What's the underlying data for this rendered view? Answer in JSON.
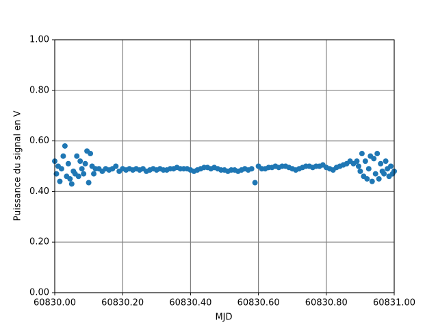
{
  "chart_data": {
    "type": "scatter",
    "x_label": "MJD",
    "y_label": "Puissance du signal en V",
    "xlim": [
      60830.0,
      60831.0
    ],
    "ylim": [
      0,
      1
    ],
    "xticks": [
      {
        "value": 60830.0,
        "label": "60830.00"
      },
      {
        "value": 60830.2,
        "label": "60830.20"
      },
      {
        "value": 60830.4,
        "label": "60830.40"
      },
      {
        "value": 60830.6,
        "label": "60830.60"
      },
      {
        "value": 60830.8,
        "label": "60830.80"
      },
      {
        "value": 60831.0,
        "label": "60831.00"
      }
    ],
    "yticks": [
      {
        "value": 0,
        "label": "0.00"
      },
      {
        "value": 0.2,
        "label": "0.20"
      },
      {
        "value": 0.4,
        "label": "0.40"
      },
      {
        "value": 0.6,
        "label": "0.60"
      },
      {
        "value": 0.8,
        "label": "0.80"
      },
      {
        "value": 1,
        "label": "1.00"
      }
    ],
    "grid": true,
    "series": [
      {
        "color": "#1f77b4",
        "x": [
          60830.0,
          60830.005,
          60830.01,
          60830.015,
          60830.02,
          60830.025,
          60830.03,
          60830.035,
          60830.04,
          60830.045,
          60830.05,
          60830.055,
          60830.06,
          60830.065,
          60830.07,
          60830.075,
          60830.08,
          60830.085,
          60830.09,
          60830.095,
          60830.1,
          60830.105,
          60830.11,
          60830.115,
          60830.12,
          60830.13,
          60830.14,
          60830.15,
          60830.16,
          60830.17,
          60830.18,
          60830.19,
          60830.2,
          60830.21,
          60830.22,
          60830.23,
          60830.24,
          60830.25,
          60830.26,
          60830.27,
          60830.28,
          60830.29,
          60830.3,
          60830.31,
          60830.32,
          60830.33,
          60830.34,
          60830.35,
          60830.36,
          60830.37,
          60830.38,
          60830.39,
          60830.4,
          60830.41,
          60830.42,
          60830.43,
          60830.44,
          60830.45,
          60830.46,
          60830.47,
          60830.48,
          60830.49,
          60830.5,
          60830.51,
          60830.52,
          60830.53,
          60830.54,
          60830.55,
          60830.56,
          60830.57,
          60830.58,
          60830.59,
          60830.6,
          60830.61,
          60830.62,
          60830.63,
          60830.64,
          60830.65,
          60830.66,
          60830.67,
          60830.68,
          60830.69,
          60830.7,
          60830.71,
          60830.72,
          60830.73,
          60830.74,
          60830.75,
          60830.76,
          60830.77,
          60830.78,
          60830.79,
          60830.8,
          60830.81,
          60830.82,
          60830.83,
          60830.84,
          60830.85,
          60830.86,
          60830.87,
          60830.88,
          60830.89,
          60830.895,
          60830.9,
          60830.905,
          60830.91,
          60830.915,
          60830.92,
          60830.925,
          60830.93,
          60830.935,
          60830.94,
          60830.945,
          60830.95,
          60830.955,
          60830.96,
          60830.965,
          60830.97,
          60830.975,
          60830.98,
          60830.985,
          60830.99,
          60830.995,
          60831.0
        ],
        "values": [
          0.52,
          0.47,
          0.5,
          0.44,
          0.49,
          0.54,
          0.58,
          0.46,
          0.51,
          0.45,
          0.43,
          0.48,
          0.47,
          0.54,
          0.46,
          0.52,
          0.49,
          0.47,
          0.51,
          0.56,
          0.435,
          0.55,
          0.5,
          0.47,
          0.49,
          0.49,
          0.48,
          0.49,
          0.485,
          0.49,
          0.5,
          0.48,
          0.49,
          0.485,
          0.49,
          0.485,
          0.49,
          0.485,
          0.49,
          0.48,
          0.485,
          0.49,
          0.485,
          0.49,
          0.485,
          0.485,
          0.49,
          0.49,
          0.495,
          0.49,
          0.49,
          0.49,
          0.485,
          0.48,
          0.485,
          0.49,
          0.495,
          0.495,
          0.49,
          0.495,
          0.49,
          0.485,
          0.485,
          0.48,
          0.485,
          0.485,
          0.48,
          0.485,
          0.49,
          0.485,
          0.49,
          0.435,
          0.5,
          0.49,
          0.49,
          0.495,
          0.495,
          0.5,
          0.495,
          0.5,
          0.5,
          0.495,
          0.49,
          0.485,
          0.49,
          0.495,
          0.5,
          0.5,
          0.495,
          0.5,
          0.5,
          0.505,
          0.495,
          0.49,
          0.485,
          0.495,
          0.5,
          0.505,
          0.51,
          0.52,
          0.51,
          0.52,
          0.5,
          0.48,
          0.55,
          0.46,
          0.52,
          0.45,
          0.49,
          0.54,
          0.44,
          0.53,
          0.47,
          0.55,
          0.45,
          0.51,
          0.48,
          0.47,
          0.52,
          0.49,
          0.46,
          0.5,
          0.47,
          0.48
        ]
      }
    ]
  }
}
